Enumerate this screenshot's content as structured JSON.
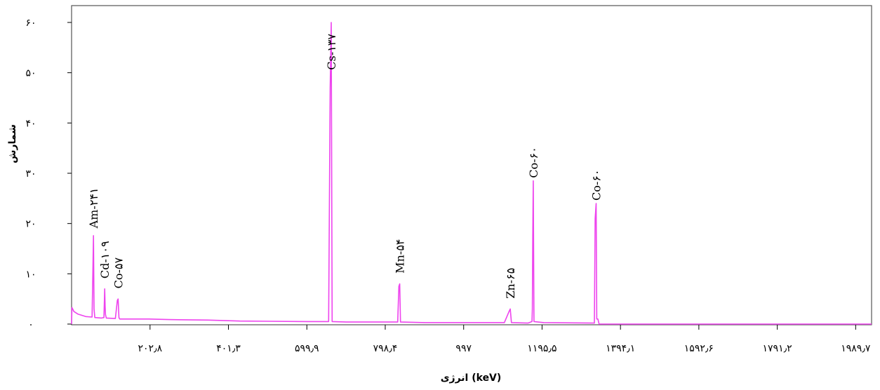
{
  "chart_data": {
    "type": "line",
    "xlabel": "انرژی (keV)",
    "ylabel": "شمارش",
    "x_range": [
      4.1,
      2030
    ],
    "ylim": [
      0,
      60
    ],
    "x_ticks": [
      {
        "value": 202.8,
        "label": "۲۰۲٫۸"
      },
      {
        "value": 401.3,
        "label": "۴۰۱٫۳"
      },
      {
        "value": 599.9,
        "label": "۵۹۹٫۹"
      },
      {
        "value": 798.4,
        "label": "۷۹۸٫۴"
      },
      {
        "value": 997,
        "label": "۹۹۷"
      },
      {
        "value": 1195.5,
        "label": "۱۱۹۵٫۵"
      },
      {
        "value": 1394.1,
        "label": "۱۳۹۴٫۱"
      },
      {
        "value": 1592.6,
        "label": "۱۵۹۲٫۶"
      },
      {
        "value": 1791.2,
        "label": "۱۷۹۱٫۲"
      },
      {
        "value": 1989.7,
        "label": "۱۹۸۹٫۷"
      }
    ],
    "y_ticks": [
      {
        "value": 0,
        "label": "۰"
      },
      {
        "value": 10,
        "label": "۱۰"
      },
      {
        "value": 20,
        "label": "۲۰"
      },
      {
        "value": 30,
        "label": "۳۰"
      },
      {
        "value": 40,
        "label": "۴۰"
      },
      {
        "value": 50,
        "label": "۵۰"
      },
      {
        "value": 60,
        "label": "۶۰"
      }
    ],
    "series": [
      {
        "color": "#ee44ee",
        "points": [
          [
            4.1,
            0
          ],
          [
            5,
            3.3
          ],
          [
            10,
            2.5
          ],
          [
            20,
            2
          ],
          [
            40,
            1.5
          ],
          [
            56,
            1.4
          ],
          [
            58,
            10
          ],
          [
            59.5,
            17.6
          ],
          [
            61,
            3
          ],
          [
            63,
            1.3
          ],
          [
            80,
            1.2
          ],
          [
            86,
            1.3
          ],
          [
            88,
            7
          ],
          [
            89,
            3.5
          ],
          [
            90,
            1.9
          ],
          [
            92,
            1.2
          ],
          [
            115,
            1.1
          ],
          [
            120,
            4.7
          ],
          [
            122,
            5
          ],
          [
            124,
            1.3
          ],
          [
            126,
            1
          ],
          [
            200,
            1
          ],
          [
            250,
            0.9
          ],
          [
            350,
            0.8
          ],
          [
            430,
            0.6
          ],
          [
            600,
            0.5
          ],
          [
            655,
            0.5
          ],
          [
            659,
            47
          ],
          [
            661.7,
            60
          ],
          [
            664,
            0.5
          ],
          [
            700,
            0.4
          ],
          [
            830,
            0.4
          ],
          [
            833,
            7.5
          ],
          [
            835,
            8
          ],
          [
            837,
            0.4
          ],
          [
            900,
            0.3
          ],
          [
            1100,
            0.3
          ],
          [
            1112,
            2.5
          ],
          [
            1115,
            3
          ],
          [
            1118,
            0.3
          ],
          [
            1160,
            0.2
          ],
          [
            1170,
            0.5
          ],
          [
            1171,
            3
          ],
          [
            1172,
            17.5
          ],
          [
            1173.2,
            28.5
          ],
          [
            1175,
            0.5
          ],
          [
            1200,
            0.3
          ],
          [
            1328,
            0.2
          ],
          [
            1330,
            21
          ],
          [
            1332.5,
            24
          ],
          [
            1334,
            1
          ],
          [
            1337,
            1
          ],
          [
            1340,
            0
          ],
          [
            2030,
            0
          ]
        ]
      }
    ],
    "annotations": [
      {
        "text": "Am-۲۴۱",
        "x": 59.5,
        "y": 18.5
      },
      {
        "text": "Cd-۱۰۹",
        "x": 88,
        "y": 8.5
      },
      {
        "text": "Co-۵۷",
        "x": 122,
        "y": 6.5
      },
      {
        "text": "Cs-۱۳۷",
        "x": 661.7,
        "y": 50
      },
      {
        "text": "Mn-۵۴",
        "x": 835,
        "y": 9.5
      },
      {
        "text": "Zn-۶۵",
        "x": 1115,
        "y": 4.5
      },
      {
        "text": "Co-۶۰",
        "x": 1173.2,
        "y": 28.5
      },
      {
        "text": "Co-۶۰",
        "x": 1332.5,
        "y": 24
      }
    ],
    "grid": false
  }
}
